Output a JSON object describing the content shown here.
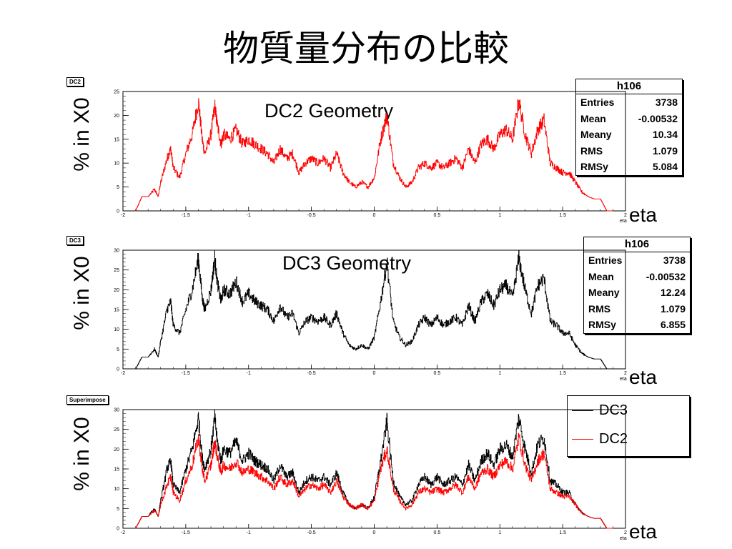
{
  "title": "物質量分布の比較",
  "panels": [
    {
      "tag": "DC2",
      "ylabel": "% in X0",
      "xlabel": "eta",
      "geometry_label": "DC2 Geometry"
    },
    {
      "tag": "DC3",
      "ylabel": "% in X0",
      "xlabel": "eta",
      "geometry_label": "DC3 Geometry"
    },
    {
      "tag": "Superimpose",
      "ylabel": "% in X0",
      "xlabel": "eta",
      "geometry_label": ""
    }
  ],
  "stats": [
    {
      "title": "h106",
      "rows": [
        {
          "k": "Entries",
          "v": "3738"
        },
        {
          "k": "Mean",
          "v": "-0.00532"
        },
        {
          "k": "Meany",
          "v": "10.34"
        },
        {
          "k": "RMS",
          "v": "1.079"
        },
        {
          "k": "RMSy",
          "v": "5.084"
        }
      ]
    },
    {
      "title": "h106",
      "rows": [
        {
          "k": "Entries",
          "v": "3738"
        },
        {
          "k": "Mean",
          "v": "-0.00532"
        },
        {
          "k": "Meany",
          "v": "12.24"
        },
        {
          "k": "RMS",
          "v": "1.079"
        },
        {
          "k": "RMSy",
          "v": "6.855"
        }
      ]
    }
  ],
  "legend": [
    {
      "label": "DC3",
      "color": "#000000"
    },
    {
      "label": "DC2",
      "color": "#ff0000"
    }
  ],
  "chart_data": [
    {
      "type": "line",
      "name": "DC2",
      "xlim": [
        -2,
        2
      ],
      "ylim": [
        0,
        25
      ],
      "xticks": [
        "-2",
        "-1.5",
        "-1",
        "-0.5",
        "0",
        "0.5",
        "1",
        "1.5",
        "2"
      ],
      "yticks": [
        "0",
        "5",
        "10",
        "15",
        "20",
        "25"
      ],
      "xlabel": "eta",
      "ylabel": "% in X0",
      "series": [
        {
          "color": "#ff0000",
          "x": [
            -1.9,
            -1.85,
            -1.82,
            -1.8,
            -1.75,
            -1.72,
            -1.7,
            -1.65,
            -1.62,
            -1.6,
            -1.55,
            -1.5,
            -1.45,
            -1.4,
            -1.37,
            -1.35,
            -1.3,
            -1.27,
            -1.25,
            -1.22,
            -1.2,
            -1.15,
            -1.1,
            -1.05,
            -1.0,
            -0.95,
            -0.9,
            -0.85,
            -0.8,
            -0.75,
            -0.7,
            -0.65,
            -0.6,
            -0.55,
            -0.5,
            -0.45,
            -0.4,
            -0.35,
            -0.3,
            -0.25,
            -0.2,
            -0.15,
            -0.1,
            -0.05,
            0.0,
            0.05,
            0.1,
            0.15,
            0.2,
            0.25,
            0.3,
            0.35,
            0.4,
            0.45,
            0.5,
            0.55,
            0.6,
            0.65,
            0.7,
            0.75,
            0.8,
            0.85,
            0.9,
            0.95,
            1.0,
            1.05,
            1.1,
            1.15,
            1.2,
            1.25,
            1.3,
            1.35,
            1.4,
            1.45,
            1.5,
            1.55,
            1.6,
            1.65,
            1.7,
            1.75,
            1.8,
            1.85,
            1.9
          ],
          "y": [
            0,
            3,
            3,
            3,
            4.5,
            3,
            6,
            11,
            13,
            9,
            7,
            12,
            16,
            23,
            15,
            12,
            16,
            22,
            18,
            14,
            16,
            15,
            17,
            14,
            15,
            14,
            13,
            12,
            10,
            13,
            11,
            12,
            8,
            10,
            11,
            10,
            11,
            9,
            12,
            8,
            6,
            5,
            6,
            5,
            7,
            15,
            20,
            10,
            7,
            5,
            6,
            9,
            10,
            9,
            10,
            9,
            10,
            11,
            9,
            13,
            10,
            14,
            15,
            13,
            16,
            17,
            15,
            23,
            16,
            12,
            17,
            19,
            10,
            9,
            8,
            8,
            6,
            4,
            3,
            2.5,
            2.5,
            0,
            0
          ]
        }
      ]
    },
    {
      "type": "line",
      "name": "DC3",
      "xlim": [
        -2,
        2
      ],
      "ylim": [
        0,
        30
      ],
      "xticks": [
        "-2",
        "-1.5",
        "-1",
        "-0.5",
        "0",
        "0.5",
        "1",
        "1.5",
        "2"
      ],
      "yticks": [
        "0",
        "5",
        "10",
        "15",
        "20",
        "25",
        "30"
      ],
      "xlabel": "eta",
      "ylabel": "% in X0",
      "series": [
        {
          "color": "#000000",
          "x": [
            -1.9,
            -1.85,
            -1.82,
            -1.8,
            -1.75,
            -1.72,
            -1.7,
            -1.65,
            -1.62,
            -1.6,
            -1.55,
            -1.5,
            -1.45,
            -1.4,
            -1.37,
            -1.35,
            -1.3,
            -1.27,
            -1.25,
            -1.22,
            -1.2,
            -1.15,
            -1.1,
            -1.05,
            -1.0,
            -0.95,
            -0.9,
            -0.85,
            -0.8,
            -0.75,
            -0.7,
            -0.65,
            -0.6,
            -0.55,
            -0.5,
            -0.45,
            -0.4,
            -0.35,
            -0.3,
            -0.25,
            -0.2,
            -0.15,
            -0.1,
            -0.05,
            0.0,
            0.05,
            0.1,
            0.15,
            0.2,
            0.25,
            0.3,
            0.35,
            0.4,
            0.45,
            0.5,
            0.55,
            0.6,
            0.65,
            0.7,
            0.75,
            0.8,
            0.85,
            0.9,
            0.95,
            1.0,
            1.05,
            1.1,
            1.15,
            1.2,
            1.25,
            1.3,
            1.35,
            1.4,
            1.45,
            1.5,
            1.55,
            1.6,
            1.65,
            1.7,
            1.75,
            1.8,
            1.85,
            1.9
          ],
          "y": [
            0,
            3,
            3,
            3,
            5,
            3,
            7,
            15,
            17,
            11,
            9,
            15,
            20,
            28,
            18,
            15,
            20,
            28,
            22,
            17,
            20,
            19,
            22,
            17,
            19,
            17,
            16,
            15,
            12,
            16,
            13,
            14,
            9,
            12,
            13,
            12,
            13,
            11,
            14,
            9,
            6,
            5,
            6,
            5,
            8,
            17,
            27,
            12,
            8,
            6,
            7,
            11,
            13,
            11,
            13,
            11,
            12,
            13,
            11,
            16,
            12,
            17,
            19,
            16,
            20,
            21,
            18,
            28,
            20,
            14,
            21,
            23,
            12,
            11,
            9,
            9,
            6,
            4,
            3,
            2.5,
            2.5,
            0,
            0
          ]
        }
      ]
    },
    {
      "type": "line",
      "name": "Superimpose",
      "xlim": [
        -2,
        2
      ],
      "ylim": [
        0,
        30
      ],
      "xticks": [
        "-2",
        "-1.5",
        "-1",
        "-0.5",
        "0",
        "0.5",
        "1",
        "1.5",
        "2"
      ],
      "yticks": [
        "0",
        "5",
        "10",
        "15",
        "20",
        "25",
        "30"
      ],
      "xlabel": "eta",
      "ylabel": "% in X0",
      "series": [
        {
          "name": "DC3",
          "color": "#000000",
          "x": [
            -1.9,
            -1.85,
            -1.82,
            -1.8,
            -1.75,
            -1.72,
            -1.7,
            -1.65,
            -1.62,
            -1.6,
            -1.55,
            -1.5,
            -1.45,
            -1.4,
            -1.37,
            -1.35,
            -1.3,
            -1.27,
            -1.25,
            -1.22,
            -1.2,
            -1.15,
            -1.1,
            -1.05,
            -1.0,
            -0.95,
            -0.9,
            -0.85,
            -0.8,
            -0.75,
            -0.7,
            -0.65,
            -0.6,
            -0.55,
            -0.5,
            -0.45,
            -0.4,
            -0.35,
            -0.3,
            -0.25,
            -0.2,
            -0.15,
            -0.1,
            -0.05,
            0.0,
            0.05,
            0.1,
            0.15,
            0.2,
            0.25,
            0.3,
            0.35,
            0.4,
            0.45,
            0.5,
            0.55,
            0.6,
            0.65,
            0.7,
            0.75,
            0.8,
            0.85,
            0.9,
            0.95,
            1.0,
            1.05,
            1.1,
            1.15,
            1.2,
            1.25,
            1.3,
            1.35,
            1.4,
            1.45,
            1.5,
            1.55,
            1.6,
            1.65,
            1.7,
            1.75,
            1.8,
            1.85,
            1.9
          ],
          "y": [
            0,
            3,
            3,
            3,
            5,
            3,
            7,
            15,
            17,
            11,
            9,
            15,
            20,
            28,
            18,
            15,
            20,
            28,
            22,
            17,
            20,
            19,
            22,
            17,
            19,
            17,
            16,
            15,
            12,
            16,
            13,
            14,
            9,
            12,
            13,
            12,
            13,
            11,
            14,
            9,
            6,
            5,
            6,
            5,
            8,
            17,
            27,
            12,
            8,
            6,
            7,
            11,
            13,
            11,
            13,
            11,
            12,
            13,
            11,
            16,
            12,
            17,
            19,
            16,
            20,
            21,
            18,
            28,
            20,
            14,
            21,
            23,
            12,
            11,
            9,
            9,
            6,
            4,
            3,
            2.5,
            2.5,
            0,
            0
          ]
        },
        {
          "name": "DC2",
          "color": "#ff0000",
          "x": [
            -1.9,
            -1.85,
            -1.82,
            -1.8,
            -1.75,
            -1.72,
            -1.7,
            -1.65,
            -1.62,
            -1.6,
            -1.55,
            -1.5,
            -1.45,
            -1.4,
            -1.37,
            -1.35,
            -1.3,
            -1.27,
            -1.25,
            -1.22,
            -1.2,
            -1.15,
            -1.1,
            -1.05,
            -1.0,
            -0.95,
            -0.9,
            -0.85,
            -0.8,
            -0.75,
            -0.7,
            -0.65,
            -0.6,
            -0.55,
            -0.5,
            -0.45,
            -0.4,
            -0.35,
            -0.3,
            -0.25,
            -0.2,
            -0.15,
            -0.1,
            -0.05,
            0.0,
            0.05,
            0.1,
            0.15,
            0.2,
            0.25,
            0.3,
            0.35,
            0.4,
            0.45,
            0.5,
            0.55,
            0.6,
            0.65,
            0.7,
            0.75,
            0.8,
            0.85,
            0.9,
            0.95,
            1.0,
            1.05,
            1.1,
            1.15,
            1.2,
            1.25,
            1.3,
            1.35,
            1.4,
            1.45,
            1.5,
            1.55,
            1.6,
            1.65,
            1.7,
            1.75,
            1.8,
            1.85,
            1.9
          ],
          "y": [
            0,
            3,
            3,
            3,
            4.5,
            3,
            6,
            11,
            13,
            9,
            7,
            12,
            16,
            23,
            15,
            12,
            16,
            22,
            18,
            14,
            16,
            15,
            17,
            14,
            15,
            14,
            13,
            12,
            10,
            13,
            11,
            12,
            8,
            10,
            11,
            10,
            11,
            9,
            12,
            8,
            6,
            5,
            6,
            5,
            7,
            15,
            20,
            10,
            7,
            5,
            6,
            9,
            10,
            9,
            10,
            9,
            10,
            11,
            9,
            13,
            10,
            14,
            15,
            13,
            16,
            17,
            15,
            23,
            16,
            12,
            17,
            19,
            10,
            9,
            8,
            8,
            6,
            4,
            3,
            2.5,
            2.5,
            0,
            0
          ]
        }
      ]
    }
  ]
}
